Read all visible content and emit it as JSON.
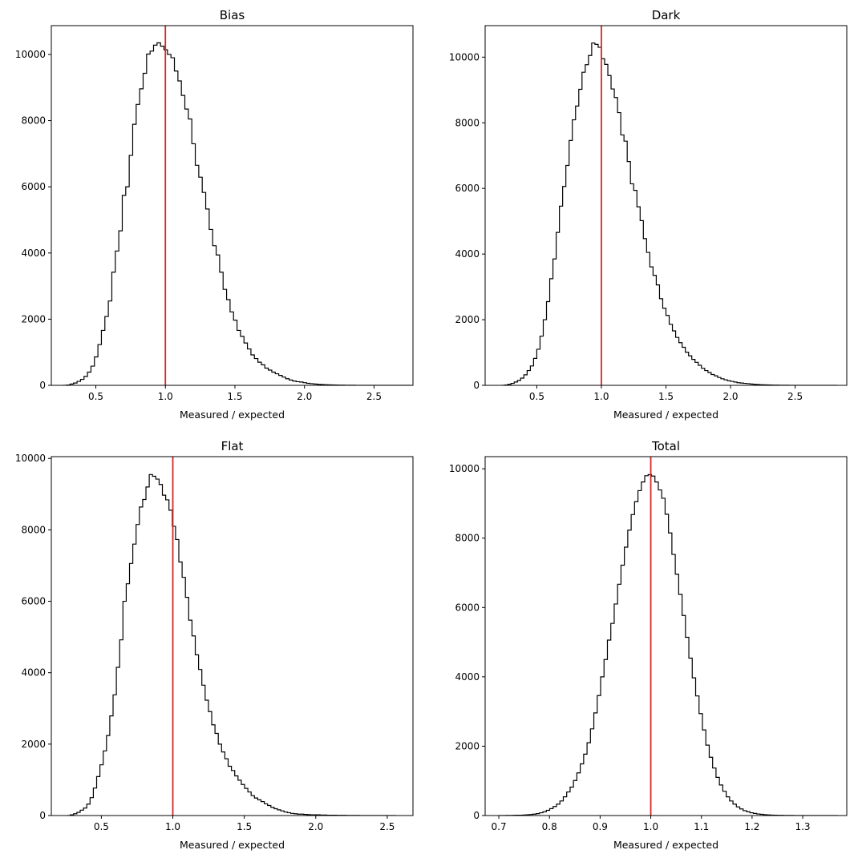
{
  "chart_data": [
    {
      "type": "histogram",
      "title": "Bias",
      "xlabel": "Measured / expected",
      "ylabel": "",
      "xlim": [
        0.18,
        2.78
      ],
      "ylim": [
        0,
        10870
      ],
      "xticks": [
        0.5,
        1.0,
        1.5,
        2.0,
        2.5
      ],
      "xtick_labels": [
        "0.5",
        "1.0",
        "1.5",
        "2.0",
        "2.5"
      ],
      "yticks": [
        0,
        2000,
        4000,
        6000,
        8000,
        10000
      ],
      "ytick_labels": [
        "0",
        "2000",
        "4000",
        "6000",
        "8000",
        "10000"
      ],
      "reference_line": {
        "x": 1.0,
        "color": "#d62728"
      },
      "step_color": "#000000",
      "bins": {
        "start": 0.265,
        "width": 0.025,
        "count": 100
      },
      "counts": [
        0,
        10,
        40,
        70,
        120,
        180,
        270,
        400,
        580,
        860,
        1230,
        1660,
        2080,
        2550,
        3420,
        4060,
        4670,
        5740,
        6000,
        6950,
        7890,
        8490,
        8960,
        9430,
        10010,
        10100,
        10280,
        10350,
        10250,
        10140,
        10000,
        9900,
        9500,
        9200,
        8760,
        8350,
        8050,
        7300,
        6650,
        6290,
        5830,
        5330,
        4710,
        4220,
        3940,
        3420,
        2900,
        2590,
        2220,
        1970,
        1660,
        1480,
        1280,
        1100,
        920,
        810,
        700,
        620,
        520,
        460,
        400,
        350,
        300,
        250,
        200,
        160,
        130,
        110,
        100,
        80,
        60,
        50,
        40,
        30,
        25,
        20,
        15,
        12,
        10,
        8,
        6,
        5,
        4,
        3,
        2,
        2,
        1,
        1,
        1,
        1,
        1,
        0,
        0,
        0,
        0,
        0,
        0,
        0,
        0,
        0
      ]
    },
    {
      "type": "histogram",
      "title": "Dark",
      "xlabel": "Measured / expected",
      "ylabel": "",
      "xlim": [
        0.1,
        2.9
      ],
      "ylim": [
        0,
        10960
      ],
      "xticks": [
        0.5,
        1.0,
        1.5,
        2.0,
        2.5
      ],
      "xtick_labels": [
        "0.5",
        "1.0",
        "1.5",
        "2.0",
        "2.5"
      ],
      "yticks": [
        0,
        2000,
        4000,
        6000,
        8000,
        10000
      ],
      "ytick_labels": [
        "0",
        "2000",
        "4000",
        "6000",
        "8000",
        "10000"
      ],
      "reference_line": {
        "x": 1.0,
        "color": "#d62728"
      },
      "step_color": "#000000",
      "bins": {
        "start": 0.225,
        "width": 0.025,
        "count": 104
      },
      "counts": [
        0,
        10,
        30,
        60,
        100,
        150,
        220,
        320,
        450,
        590,
        820,
        1100,
        1500,
        2000,
        2550,
        3250,
        3850,
        4660,
        5460,
        6060,
        6700,
        7460,
        8090,
        8510,
        9020,
        9540,
        9770,
        10050,
        10430,
        10390,
        10300,
        9950,
        9780,
        9440,
        9030,
        8770,
        8310,
        7630,
        7440,
        6820,
        6140,
        5940,
        5440,
        5020,
        4470,
        4050,
        3610,
        3350,
        3060,
        2640,
        2350,
        2130,
        1860,
        1660,
        1460,
        1300,
        1160,
        1010,
        900,
        790,
        700,
        610,
        520,
        450,
        390,
        330,
        290,
        240,
        200,
        170,
        140,
        120,
        100,
        80,
        70,
        60,
        50,
        40,
        30,
        25,
        20,
        15,
        12,
        10,
        8,
        6,
        5,
        4,
        3,
        2,
        2,
        1,
        1,
        1,
        1,
        0,
        0,
        0,
        0,
        0,
        0,
        0,
        0,
        0
      ]
    },
    {
      "type": "histogram",
      "title": "Flat",
      "xlabel": "Measured / expected",
      "ylabel": "",
      "xlim": [
        0.15,
        2.68
      ],
      "ylim": [
        0,
        10050
      ],
      "xticks": [
        0.5,
        1.0,
        1.5,
        2.0,
        2.5
      ],
      "xtick_labels": [
        "0.5",
        "1.0",
        "1.5",
        "2.0",
        "2.5"
      ],
      "yticks": [
        0,
        2000,
        4000,
        6000,
        8000,
        10000
      ],
      "ytick_labels": [
        "0",
        "2000",
        "4000",
        "6000",
        "8000",
        "10000"
      ],
      "reference_line": {
        "x": 1.0,
        "color": "#d62728"
      },
      "step_color": "#000000",
      "bins": {
        "start": 0.26,
        "width": 0.023,
        "count": 100
      },
      "counts": [
        0,
        20,
        50,
        90,
        150,
        210,
        320,
        500,
        770,
        1090,
        1420,
        1810,
        2240,
        2790,
        3380,
        4150,
        4920,
        6000,
        6490,
        7060,
        7600,
        8150,
        8640,
        8850,
        9200,
        9550,
        9500,
        9420,
        9270,
        8970,
        8840,
        8550,
        8100,
        7730,
        7100,
        6670,
        6110,
        5470,
        5030,
        4500,
        4090,
        3650,
        3230,
        2910,
        2540,
        2300,
        2000,
        1780,
        1590,
        1380,
        1260,
        1110,
        990,
        870,
        760,
        660,
        560,
        490,
        440,
        390,
        330,
        280,
        230,
        190,
        160,
        130,
        100,
        80,
        60,
        50,
        40,
        40,
        30,
        25,
        20,
        20,
        20,
        15,
        15,
        10,
        10,
        10,
        5,
        5,
        5,
        3,
        3,
        2,
        2,
        1,
        1,
        0,
        0,
        0,
        0,
        0,
        0,
        0,
        0,
        0
      ]
    },
    {
      "type": "histogram",
      "title": "Total",
      "xlabel": "Measured / expected",
      "ylabel": "",
      "xlim": [
        0.673,
        1.387
      ],
      "ylim": [
        0,
        10350
      ],
      "xticks": [
        0.7,
        0.8,
        0.9,
        1.0,
        1.1,
        1.2,
        1.3
      ],
      "xtick_labels": [
        "0.7",
        "0.8",
        "0.9",
        "1.0",
        "1.1",
        "1.2",
        "1.3"
      ],
      "yticks": [
        0,
        2000,
        4000,
        6000,
        8000,
        10000
      ],
      "ytick_labels": [
        "0",
        "2000",
        "4000",
        "6000",
        "8000",
        "10000"
      ],
      "reference_line": {
        "x": 1.0,
        "color": "#d62728"
      },
      "step_color": "#000000",
      "bins": {
        "start": 0.7,
        "width": 0.0067,
        "count": 100
      },
      "counts": [
        0,
        1,
        2,
        3,
        5,
        8,
        10,
        15,
        20,
        30,
        40,
        55,
        80,
        110,
        150,
        200,
        260,
        330,
        420,
        540,
        680,
        820,
        1010,
        1230,
        1490,
        1770,
        2100,
        2500,
        2960,
        3460,
        4000,
        4500,
        5060,
        5540,
        6100,
        6670,
        7220,
        7740,
        8230,
        8680,
        9050,
        9370,
        9620,
        9800,
        9830,
        9790,
        9620,
        9390,
        9150,
        8690,
        8150,
        7530,
        6960,
        6380,
        5770,
        5140,
        4540,
        3970,
        3450,
        2940,
        2470,
        2030,
        1680,
        1370,
        1100,
        880,
        700,
        540,
        420,
        330,
        250,
        190,
        140,
        110,
        80,
        60,
        45,
        35,
        25,
        18,
        13,
        10,
        7,
        5,
        3,
        2,
        2,
        1,
        1,
        1,
        0,
        0,
        0,
        0,
        0,
        0,
        0,
        0,
        0,
        0
      ]
    }
  ]
}
